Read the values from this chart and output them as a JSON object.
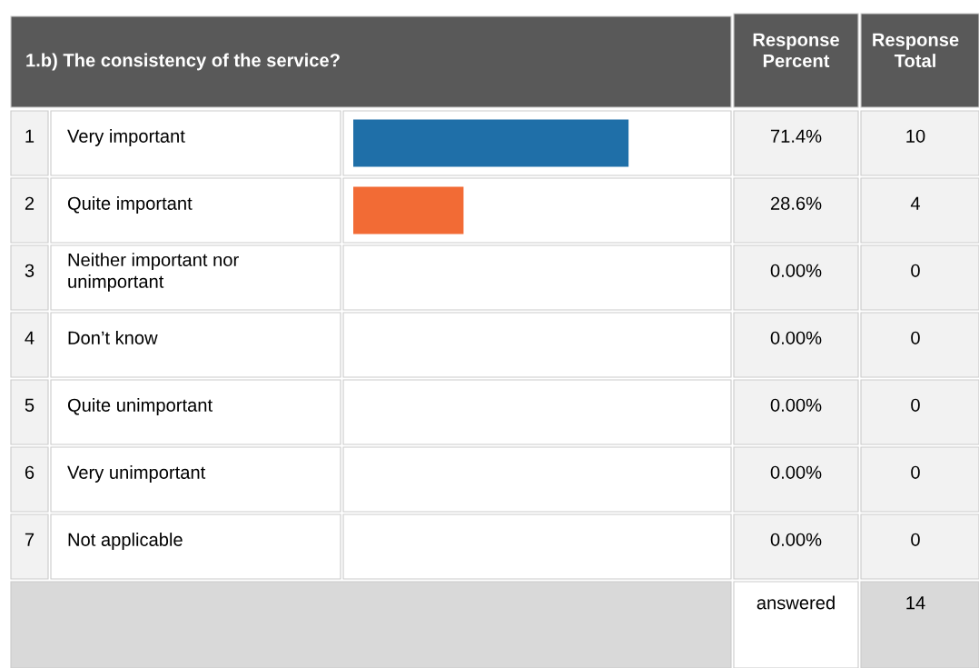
{
  "chart_data": {
    "type": "bar",
    "orientation": "horizontal",
    "title": "1.b) The consistency of the service?",
    "categories": [
      "Very important",
      "Quite important",
      "Neither important nor\nunimportant",
      "Don’t know",
      "Quite unimportant",
      "Very unimportant",
      "Not applicable"
    ],
    "values": [
      71.4,
      28.6,
      0,
      0,
      0,
      0,
      0
    ],
    "colors": [
      "#1f6fa8",
      "#f26b35",
      "#1f6fa8",
      "#1f6fa8",
      "#1f6fa8",
      "#1f6fa8",
      "#1f6fa8"
    ],
    "value_labels": [
      "71.4%",
      "28.6%",
      "0.00%",
      "0.00%",
      "0.00%",
      "0.00%",
      "0.00%"
    ],
    "annotations": [
      "Response\nPercent",
      "Response\nTotal",
      "1",
      "2",
      "3",
      "4",
      "5",
      "6",
      "7",
      "10",
      "4",
      "0",
      "0",
      "0",
      "0",
      "0",
      "answered",
      "14"
    ]
  }
}
